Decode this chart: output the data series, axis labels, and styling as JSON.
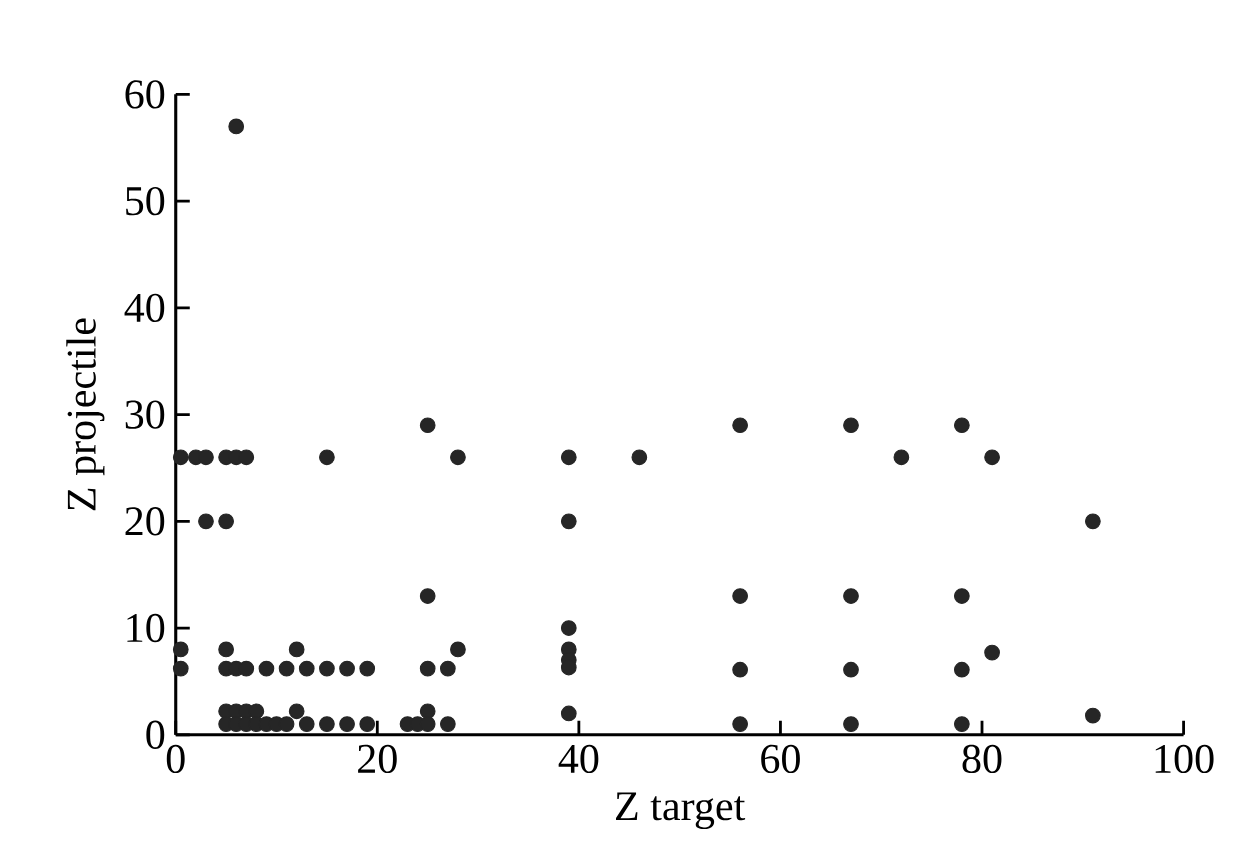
{
  "chart_data": {
    "type": "scatter",
    "xlabel": "Z target",
    "ylabel": "Z projectile",
    "xlim": [
      0,
      100
    ],
    "ylim": [
      0,
      60
    ],
    "xticks": [
      0,
      20,
      40,
      60,
      80,
      100
    ],
    "yticks": [
      0,
      10,
      20,
      30,
      40,
      50,
      60
    ],
    "grid": false,
    "marker": "circle",
    "series": [
      {
        "color": "#262626",
        "x": [
          6,
          0.5,
          2,
          3,
          5,
          6,
          7,
          15,
          28,
          25,
          3,
          5,
          25,
          0.5,
          5,
          12,
          28,
          0.5,
          5,
          6,
          7,
          9,
          11,
          13,
          15,
          17,
          19,
          25,
          27,
          5,
          6,
          7,
          8,
          12,
          25,
          5,
          6,
          7,
          8,
          9,
          10,
          11,
          13,
          15,
          17,
          19,
          23,
          24,
          25,
          27,
          56,
          67,
          78,
          39,
          46,
          72,
          81,
          39,
          91,
          56,
          67,
          78,
          39,
          39,
          39,
          39,
          81,
          56,
          67,
          78,
          39,
          91,
          56,
          67,
          78
        ],
        "values": [
          57,
          26,
          26,
          26,
          26,
          26,
          26,
          26,
          26,
          29,
          20,
          20,
          13,
          8,
          8,
          8,
          8,
          6.2,
          6.2,
          6.2,
          6.2,
          6.2,
          6.2,
          6.2,
          6.2,
          6.2,
          6.2,
          6.2,
          6.2,
          2.2,
          2.2,
          2.2,
          2.2,
          2.2,
          2.2,
          1,
          1,
          1,
          1,
          1,
          1,
          1,
          1,
          1,
          1,
          1,
          1,
          1,
          1,
          1,
          29,
          29,
          29,
          26,
          26,
          26,
          26,
          20,
          20,
          13,
          13,
          13,
          10,
          8,
          7,
          6.3,
          7.7,
          6.1,
          6.1,
          6.1,
          2,
          1.8,
          1,
          1,
          1
        ]
      }
    ]
  }
}
